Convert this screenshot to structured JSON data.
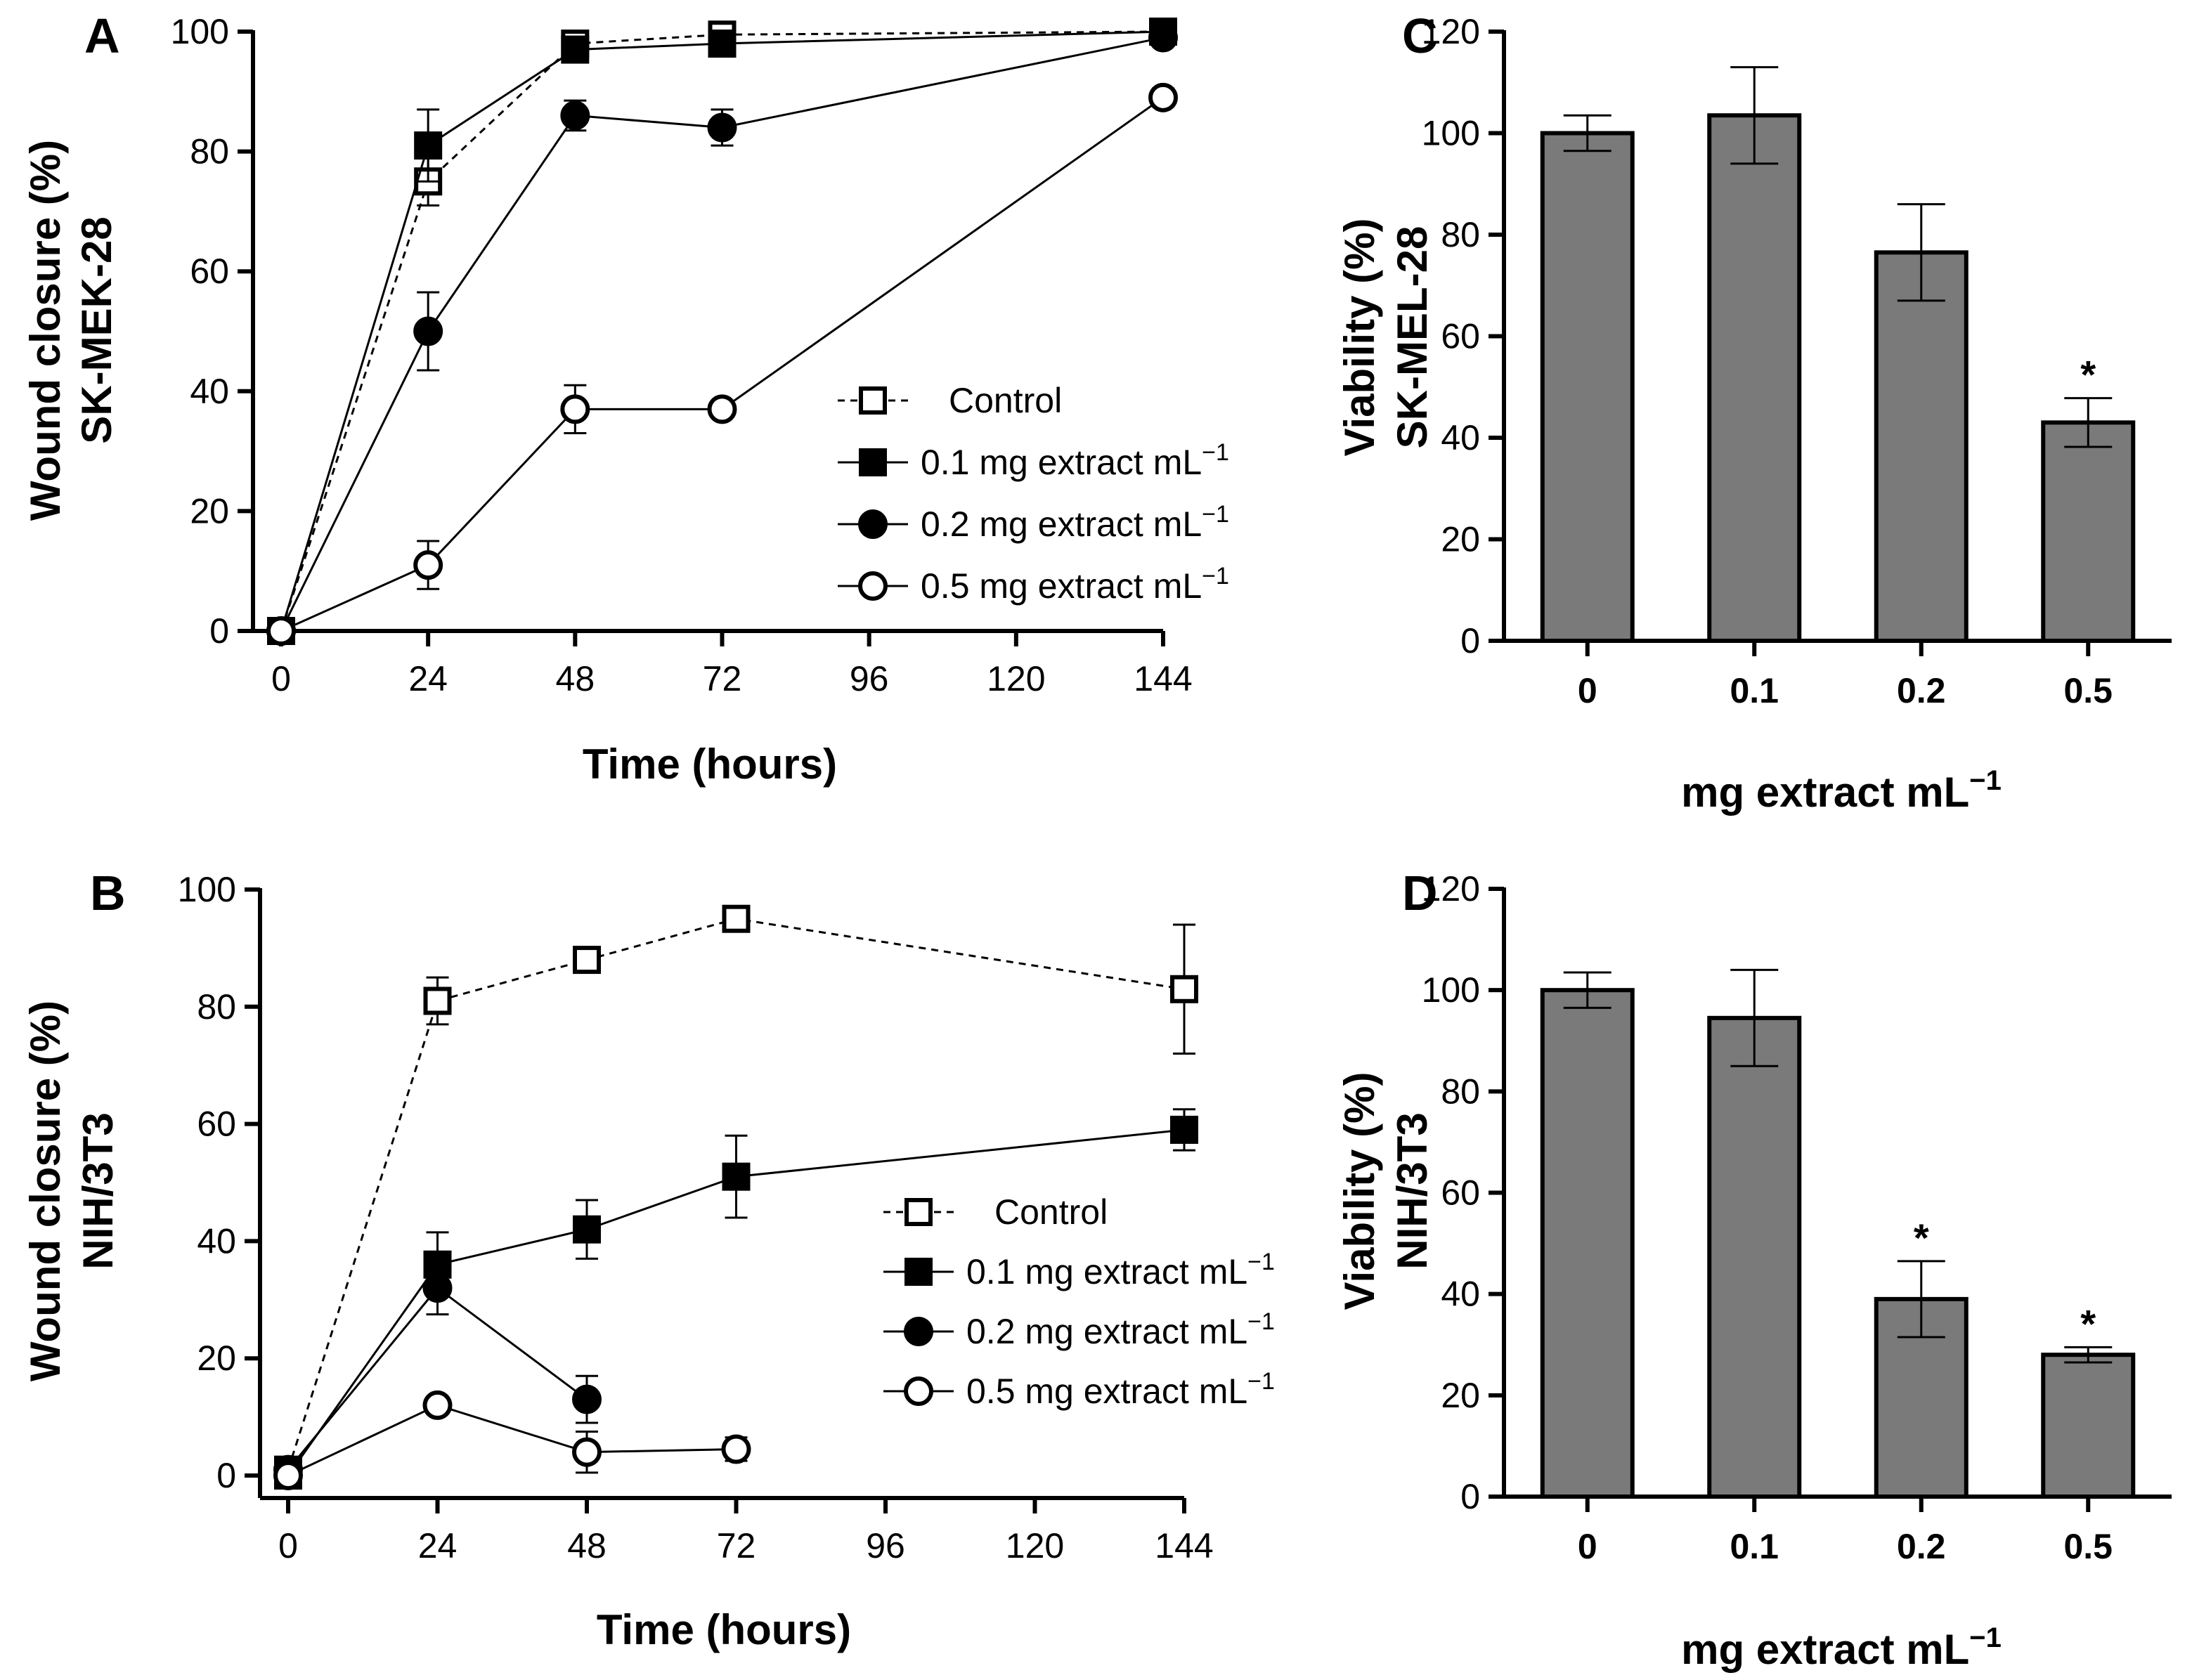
{
  "chart_data": [
    {
      "panel": "A",
      "type": "line",
      "xlabel": "Time (hours)",
      "ylabel": [
        "Wound closure (%)",
        "SK-MEK-28"
      ],
      "xlim": [
        0,
        144
      ],
      "ylim": [
        0,
        100
      ],
      "xticks": [
        "0",
        "24",
        "48",
        "72",
        "96",
        "120",
        "144"
      ],
      "yticks": [
        "0",
        "20",
        "40",
        "60",
        "80",
        "100"
      ],
      "legend_position": "lower-right",
      "series": [
        {
          "name": "Control",
          "unit": "",
          "marker": "open-square",
          "line": "dashed",
          "x": [
            0,
            24,
            48,
            72,
            144
          ],
          "y": [
            0,
            75,
            98,
            99.5,
            100
          ],
          "err": [
            0,
            4,
            1.5,
            1,
            0.5
          ]
        },
        {
          "name": "0.1 mg extract mL",
          "unit": "−1",
          "marker": "filled-square",
          "line": "solid",
          "x": [
            0,
            24,
            48,
            72,
            144
          ],
          "y": [
            0,
            81,
            97,
            98,
            100
          ],
          "err": [
            0,
            6,
            1,
            1,
            0.5
          ]
        },
        {
          "name": "0.2 mg extract mL",
          "unit": "−1",
          "marker": "filled-circle",
          "line": "solid",
          "x": [
            0,
            24,
            48,
            72,
            144
          ],
          "y": [
            0,
            50,
            86,
            84,
            99
          ],
          "err": [
            0,
            6.5,
            2.5,
            3,
            0.5
          ]
        },
        {
          "name": "0.5 mg extract mL",
          "unit": "−1",
          "marker": "open-circle",
          "line": "solid",
          "x": [
            0,
            24,
            48,
            72,
            144
          ],
          "y": [
            0,
            11,
            37,
            37,
            89
          ],
          "err": [
            0,
            4,
            4,
            1,
            1.5
          ]
        }
      ]
    },
    {
      "panel": "B",
      "type": "line",
      "xlabel": "Time (hours)",
      "ylabel": [
        "Wound closure (%)",
        "NIH/3T3"
      ],
      "xlim": [
        0,
        144
      ],
      "ylim": [
        0,
        100
      ],
      "xticks": [
        "0",
        "24",
        "48",
        "72",
        "96",
        "120",
        "144"
      ],
      "yticks": [
        "0",
        "20",
        "40",
        "60",
        "80",
        "100"
      ],
      "legend_position": "right",
      "series": [
        {
          "name": "Control",
          "unit": "",
          "marker": "open-square",
          "line": "dashed",
          "x": [
            0,
            24,
            48,
            72,
            144
          ],
          "y": [
            1,
            81,
            88,
            95,
            83
          ],
          "err": [
            2,
            4,
            2,
            1,
            11
          ]
        },
        {
          "name": "0.1 mg extract mL",
          "unit": "−1",
          "marker": "filled-square",
          "line": "solid",
          "x": [
            0,
            24,
            48,
            72,
            144
          ],
          "y": [
            0,
            36,
            42,
            51,
            59
          ],
          "err": [
            2,
            5.5,
            5,
            7,
            3.5
          ]
        },
        {
          "name": "0.2 mg extract mL",
          "unit": "−1",
          "marker": "filled-circle",
          "line": "solid",
          "x": [
            0,
            24,
            48
          ],
          "y": [
            1,
            32,
            13
          ],
          "err": [
            2,
            4.5,
            4
          ]
        },
        {
          "name": "0.5 mg extract mL",
          "unit": "−1",
          "marker": "open-circle",
          "line": "solid",
          "x": [
            0,
            24,
            48,
            72
          ],
          "y": [
            0,
            12,
            4,
            4.5
          ],
          "err": [
            1,
            1.5,
            3.5,
            2
          ]
        }
      ]
    },
    {
      "panel": "C",
      "type": "bar",
      "categories": [
        "0",
        "0.1",
        "0.2",
        "0.5"
      ],
      "values": [
        100,
        103.5,
        76.5,
        43
      ],
      "errors": [
        3.5,
        9.5,
        9.5,
        4.8
      ],
      "significance": [
        "",
        "",
        "",
        "*"
      ],
      "xlabel": "mg extract mL",
      "xlabel_unit": "−1",
      "ylabel": [
        "Viability (%)",
        "SK-MEL-28"
      ],
      "ylim": [
        0,
        120
      ],
      "yticks": [
        "0",
        "20",
        "40",
        "60",
        "80",
        "100",
        "120"
      ],
      "bar_color": "#7a7a7a"
    },
    {
      "panel": "D",
      "type": "bar",
      "categories": [
        "0",
        "0.1",
        "0.2",
        "0.5"
      ],
      "values": [
        100,
        94.5,
        39,
        28
      ],
      "errors": [
        3.5,
        9.5,
        7.5,
        1.5
      ],
      "significance": [
        "",
        "",
        "*",
        "*"
      ],
      "xlabel": "mg extract mL",
      "xlabel_unit": "−1",
      "ylabel": [
        "Viability (%)",
        "NIH/3T3"
      ],
      "ylim": [
        0,
        120
      ],
      "yticks": [
        "0",
        "20",
        "40",
        "60",
        "80",
        "100",
        "120"
      ],
      "bar_color": "#7a7a7a"
    }
  ]
}
